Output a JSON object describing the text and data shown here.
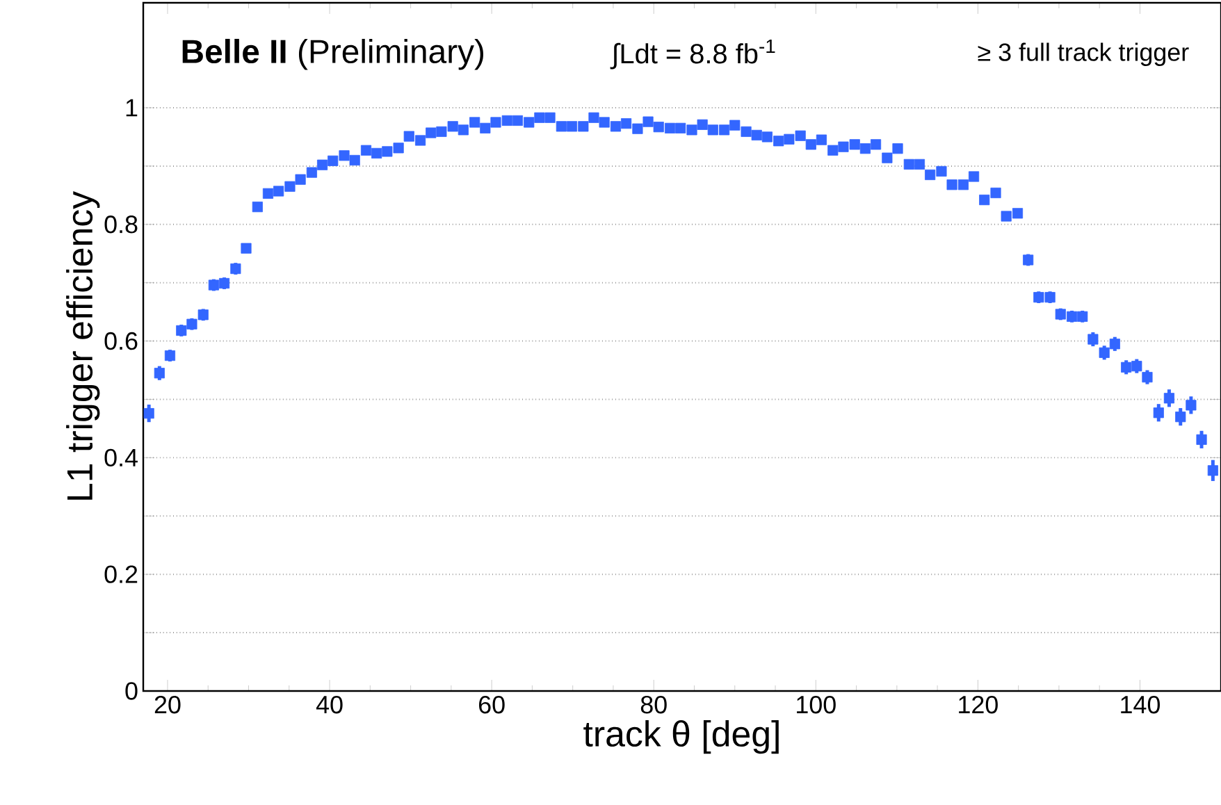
{
  "chart_data": {
    "type": "scatter",
    "xlabel": "track θ [deg]",
    "ylabel": "L1 trigger efficiency",
    "annotations": [
      "**Belle II** (Preliminary)",
      "∫Ldt = 8.8 fb$^{-1}$",
      "≥ 3 full track trigger"
    ],
    "xlim": [
      17,
      150
    ],
    "ylim": [
      0,
      1.18
    ],
    "xticks": [
      20,
      40,
      60,
      80,
      100,
      120,
      140
    ],
    "yticks": [
      0,
      {
        "value": 0.1,
        "label": null
      },
      0.2,
      {
        "value": 0.3,
        "label": null
      },
      0.4,
      {
        "value": 0.5,
        "label": null
      },
      0.6,
      {
        "value": 0.7,
        "label": null
      },
      0.8,
      {
        "value": 0.9,
        "label": null
      },
      1
    ],
    "grid": "y",
    "marker": "square",
    "color": "#3366ff",
    "x": [
      17.7,
      19.0,
      20.3,
      21.7,
      23.0,
      24.4,
      25.7,
      27.0,
      28.4,
      29.7,
      31.1,
      32.4,
      33.7,
      35.1,
      36.4,
      37.8,
      39.1,
      40.4,
      41.8,
      43.1,
      44.5,
      45.8,
      47.1,
      48.5,
      49.8,
      51.2,
      52.5,
      53.8,
      55.2,
      56.5,
      57.9,
      59.2,
      60.5,
      61.9,
      63.2,
      64.6,
      65.9,
      67.2,
      68.6,
      69.9,
      71.3,
      72.6,
      73.9,
      75.3,
      76.6,
      78.0,
      79.3,
      80.6,
      82.0,
      83.3,
      84.7,
      86.0,
      87.3,
      88.7,
      90.0,
      91.4,
      92.7,
      94.0,
      95.4,
      96.7,
      98.1,
      99.4,
      100.7,
      102.1,
      103.4,
      104.8,
      106.1,
      107.4,
      108.8,
      110.1,
      111.5,
      112.8,
      114.1,
      115.5,
      116.8,
      118.2,
      119.5,
      120.8,
      122.2,
      123.5,
      124.9,
      126.2,
      127.5,
      128.9,
      130.2,
      131.6,
      132.9,
      134.2,
      135.6,
      136.9,
      138.3,
      139.6,
      140.9,
      142.3,
      143.6,
      145.0,
      146.3,
      147.6,
      149.0
    ],
    "values": [
      0.476,
      0.545,
      0.575,
      0.618,
      0.629,
      0.645,
      0.696,
      0.699,
      0.724,
      0.759,
      0.83,
      0.853,
      0.857,
      0.865,
      0.877,
      0.889,
      0.902,
      0.909,
      0.918,
      0.91,
      0.927,
      0.922,
      0.925,
      0.931,
      0.951,
      0.944,
      0.957,
      0.959,
      0.968,
      0.962,
      0.975,
      0.965,
      0.975,
      0.978,
      0.978,
      0.975,
      0.983,
      0.983,
      0.968,
      0.968,
      0.968,
      0.983,
      0.975,
      0.968,
      0.973,
      0.964,
      0.976,
      0.967,
      0.965,
      0.965,
      0.962,
      0.971,
      0.962,
      0.962,
      0.97,
      0.959,
      0.953,
      0.95,
      0.943,
      0.946,
      0.952,
      0.937,
      0.945,
      0.927,
      0.933,
      0.937,
      0.93,
      0.937,
      0.914,
      0.93,
      0.903,
      0.903,
      0.885,
      0.891,
      0.868,
      0.868,
      0.882,
      0.842,
      0.854,
      0.814,
      0.819,
      0.739,
      0.675,
      0.675,
      0.646,
      0.642,
      0.642,
      0.603,
      0.58,
      0.595,
      0.555,
      0.557,
      0.538,
      0.477,
      0.502,
      0.47,
      0.49,
      0.431,
      0.378
    ],
    "errors": [
      0.015,
      0.012,
      0.01,
      0.01,
      0.01,
      0.01,
      0.01,
      0.01,
      0.01,
      0.008,
      0.006,
      0.005,
      0.005,
      0.005,
      0.005,
      0.005,
      0.005,
      0.005,
      0.005,
      0.005,
      0.005,
      0.005,
      0.005,
      0.005,
      0.005,
      0.005,
      0.005,
      0.005,
      0.005,
      0.005,
      0.005,
      0.005,
      0.005,
      0.005,
      0.005,
      0.005,
      0.005,
      0.005,
      0.005,
      0.005,
      0.005,
      0.005,
      0.005,
      0.005,
      0.005,
      0.005,
      0.005,
      0.005,
      0.005,
      0.005,
      0.005,
      0.005,
      0.005,
      0.005,
      0.005,
      0.005,
      0.005,
      0.005,
      0.005,
      0.005,
      0.005,
      0.005,
      0.005,
      0.005,
      0.005,
      0.005,
      0.005,
      0.005,
      0.005,
      0.005,
      0.005,
      0.005,
      0.005,
      0.006,
      0.006,
      0.006,
      0.006,
      0.008,
      0.008,
      0.008,
      0.008,
      0.01,
      0.01,
      0.01,
      0.01,
      0.01,
      0.01,
      0.012,
      0.012,
      0.012,
      0.012,
      0.012,
      0.012,
      0.015,
      0.015,
      0.015,
      0.015,
      0.015,
      0.018
    ]
  }
}
